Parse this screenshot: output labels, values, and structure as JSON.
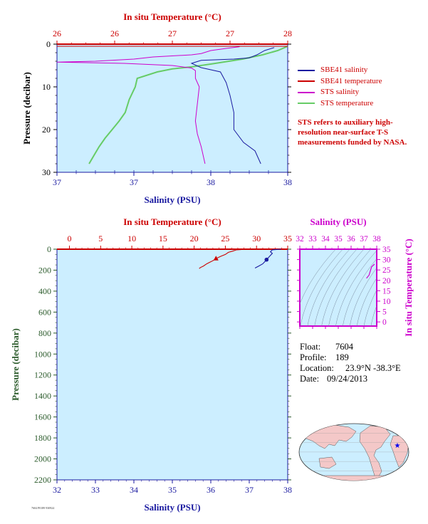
{
  "chart_data": [
    {
      "type": "line",
      "id": "near-surface",
      "top_axis_label": "In situ Temperature (°C)",
      "top_ticks": [
        "26",
        "26",
        "27",
        "27",
        "28"
      ],
      "bottom_axis_label": "Salinity (PSU)",
      "bottom_ticks": [
        "37",
        "37",
        "38",
        "38"
      ],
      "ylabel": "Pressure (decibar)",
      "y_ticks": [
        "0",
        "10",
        "20",
        "30"
      ],
      "ylim": [
        30,
        0
      ],
      "temp_lim": [
        25.5,
        27.8
      ],
      "sal_lim": [
        36.7,
        37.9
      ],
      "series": [
        {
          "name": "SBE41 salinity",
          "color": "#1a1aa0",
          "axis": "salinity",
          "points": [
            [
              37.83,
              0.8
            ],
            [
              37.78,
              1.5
            ],
            [
              37.74,
              2.5
            ],
            [
              37.7,
              3.2
            ],
            [
              37.62,
              3.5
            ],
            [
              37.45,
              3.8
            ],
            [
              37.4,
              4.5
            ],
            [
              37.45,
              5.5
            ],
            [
              37.55,
              6.5
            ],
            [
              37.58,
              9
            ],
            [
              37.6,
              12
            ],
            [
              37.62,
              16
            ],
            [
              37.62,
              20
            ],
            [
              37.67,
              23
            ],
            [
              37.73,
              25
            ],
            [
              37.76,
              28
            ]
          ]
        },
        {
          "name": "SBE41 temperature",
          "color": "#cc0000",
          "axis": "temperature",
          "points": [
            [
              27.8,
              0.5
            ],
            [
              27.7,
              1.5
            ],
            [
              27.55,
              2.5
            ],
            [
              27.35,
              3.5
            ],
            [
              27.05,
              4.6
            ],
            [
              26.85,
              5.3
            ],
            [
              26.65,
              5.8
            ],
            [
              26.5,
              6.5
            ],
            [
              26.3,
              8
            ],
            [
              26.28,
              10
            ],
            [
              26.22,
              13
            ],
            [
              26.18,
              16
            ],
            [
              26.12,
              18
            ],
            [
              26.05,
              20
            ],
            [
              25.98,
              22
            ],
            [
              25.92,
              24
            ],
            [
              25.87,
              26
            ],
            [
              25.82,
              28
            ]
          ]
        },
        {
          "name": "STS salinity",
          "color": "#cc00cc",
          "axis": "salinity",
          "points": [
            [
              37.65,
              0.6
            ],
            [
              37.58,
              1.0
            ],
            [
              37.5,
              1.5
            ],
            [
              37.45,
              2.2
            ],
            [
              37.4,
              2.5
            ],
            [
              37.2,
              3
            ],
            [
              37.1,
              3.5
            ],
            [
              36.9,
              4.0
            ],
            [
              36.7,
              4.2
            ],
            [
              37.05,
              4.5
            ],
            [
              37.3,
              5.0
            ],
            [
              37.4,
              5.6
            ],
            [
              37.42,
              6.2
            ],
            [
              37.42,
              8
            ],
            [
              37.44,
              10
            ],
            [
              37.43,
              14
            ],
            [
              37.42,
              18
            ],
            [
              37.43,
              21
            ],
            [
              37.45,
              24
            ],
            [
              37.46,
              26
            ],
            [
              37.47,
              28
            ]
          ]
        },
        {
          "name": "STS temperature",
          "color": "#66cc66",
          "axis": "temperature",
          "points": [
            [
              27.8,
              0.5
            ],
            [
              27.7,
              1.5
            ],
            [
              27.55,
              2.5
            ],
            [
              27.35,
              3.5
            ],
            [
              27.05,
              4.6
            ],
            [
              26.85,
              5.3
            ],
            [
              26.65,
              5.8
            ],
            [
              26.5,
              6.5
            ],
            [
              26.3,
              8
            ],
            [
              26.28,
              10
            ],
            [
              26.22,
              13
            ],
            [
              26.18,
              16
            ],
            [
              26.12,
              18
            ],
            [
              26.05,
              20
            ],
            [
              25.98,
              22
            ],
            [
              25.92,
              24
            ],
            [
              25.87,
              26
            ],
            [
              25.82,
              28
            ]
          ]
        }
      ]
    },
    {
      "type": "line",
      "id": "full-profile",
      "top_axis_label": "In situ Temperature (°C)",
      "top_ticks": [
        "0",
        "5",
        "10",
        "15",
        "20",
        "25",
        "30",
        "35"
      ],
      "bottom_axis_label": "Salinity (PSU)",
      "bottom_ticks": [
        "32",
        "33",
        "34",
        "35",
        "36",
        "37",
        "38"
      ],
      "ylabel": "Pressure (decibar)",
      "y_ticks": [
        "0",
        "200",
        "400",
        "600",
        "800",
        "1000",
        "1200",
        "1400",
        "1600",
        "1800",
        "2000",
        "2200"
      ],
      "ylim": [
        2200,
        0
      ],
      "temp_lim": [
        -2,
        35
      ],
      "sal_lim": [
        32,
        38
      ],
      "series": [
        {
          "name": "SBE41 temperature",
          "color": "#cc0000",
          "axis": "temperature",
          "points": [
            [
              27.8,
              0
            ],
            [
              27.5,
              4
            ],
            [
              26.8,
              6
            ],
            [
              26.2,
              18
            ],
            [
              25.5,
              30
            ],
            [
              25.0,
              50
            ],
            [
              24.2,
              70
            ],
            [
              23.5,
              90
            ],
            [
              23.0,
              110
            ],
            [
              22.5,
              125
            ],
            [
              22.0,
              140
            ],
            [
              21.5,
              160
            ],
            [
              21.0,
              175
            ],
            [
              20.8,
              185
            ]
          ]
        },
        {
          "name": "SBE41 salinity",
          "color": "#1a1aa0",
          "axis": "salinity",
          "points": [
            [
              37.83,
              0
            ],
            [
              37.6,
              6
            ],
            [
              37.55,
              25
            ],
            [
              37.6,
              40
            ],
            [
              37.55,
              60
            ],
            [
              37.5,
              80
            ],
            [
              37.45,
              100
            ],
            [
              37.4,
              120
            ],
            [
              37.35,
              140
            ],
            [
              37.25,
              160
            ],
            [
              37.15,
              180
            ]
          ]
        }
      ]
    },
    {
      "type": "line",
      "id": "ts-diagram",
      "top_axis_label": "Salinity (PSU)",
      "top_ticks": [
        "32",
        "33",
        "34",
        "35",
        "36",
        "37",
        "38"
      ],
      "right_axis_label": "In situ Temperature (°C)",
      "right_ticks": [
        "0",
        "5",
        "10",
        "15",
        "20",
        "25",
        "30",
        "35"
      ],
      "sal_lim": [
        32,
        38
      ],
      "temp_lim": [
        -2,
        35
      ],
      "series": [
        {
          "name": "T-S",
          "color": "#cc00cc",
          "points": [
            [
              37.83,
              27.8
            ],
            [
              37.6,
              26.5
            ],
            [
              37.5,
              24.5
            ],
            [
              37.4,
              22.5
            ],
            [
              37.2,
              21.0
            ]
          ]
        }
      ]
    }
  ],
  "legend": {
    "items": [
      {
        "label": "SBE41 salinity",
        "color": "#1a1aa0"
      },
      {
        "label": "SBE41 temperature",
        "color": "#cc0000"
      },
      {
        "label": "STS salinity",
        "color": "#cc00cc"
      },
      {
        "label": "STS temperature",
        "color": "#66cc66"
      }
    ]
  },
  "note": "STS refers to auxiliary high-resolution near-surface T-S measurements funded by NASA.",
  "info": {
    "float_label": "Float:",
    "float_value": "7604",
    "profile_label": "Profile:",
    "profile_value": "189",
    "location_label": "Location:",
    "location_value": "23.9°N  -38.3°E",
    "date_label": "Date:",
    "date_value": "09/24/2013"
  },
  "footer_tiny": "7604 P0189 930924",
  "colors": {
    "plot_bg": "#cceeff",
    "temperature": "#cc0000",
    "salinity": "#1a1aa0",
    "ts_axis": "#cc00cc",
    "pressure_axis": "#2a5a2a",
    "land": "#f4c8c8",
    "ocean": "#cceeff"
  }
}
